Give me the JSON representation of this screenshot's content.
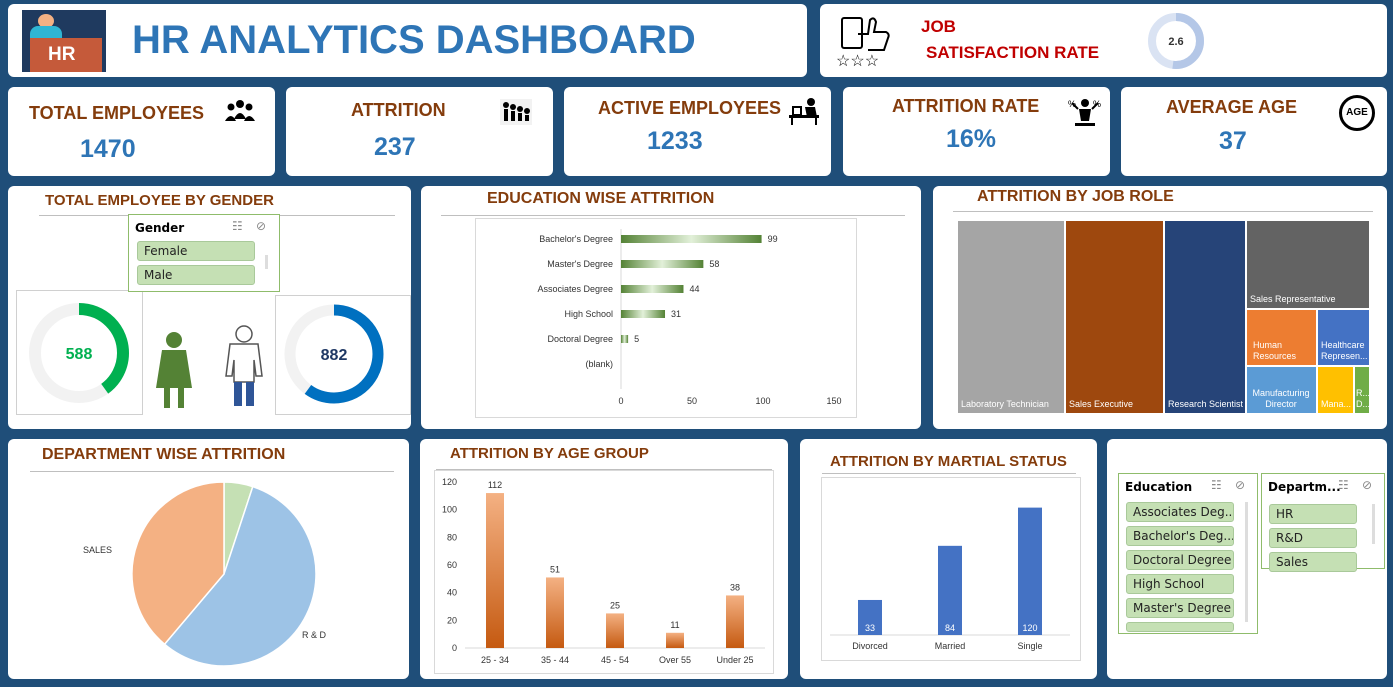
{
  "header": {
    "title": "HR ANALYTICS DASHBOARD",
    "logo_text": "HR"
  },
  "satisfaction": {
    "line1": "JOB",
    "line2": "SATISFACTION RATE",
    "value": "2.6",
    "fraction": 0.52
  },
  "kpis": [
    {
      "title": "TOTAL EMPLOYEES",
      "value": "1470",
      "icon": "people-icon"
    },
    {
      "title": "ATTRITION",
      "value": "237",
      "icon": "attrition-icon"
    },
    {
      "title": "ACTIVE EMPLOYEES",
      "value": "1233",
      "icon": "desk-worker-icon"
    },
    {
      "title": "ATTRITION RATE",
      "value": "16%",
      "icon": "rate-person-icon"
    },
    {
      "title": "AVERAGE AGE",
      "value": "37",
      "icon": "age-icon",
      "icon_text": "AGE"
    }
  ],
  "gender": {
    "title": "TOTAL EMPLOYEE BY GENDER",
    "slicer": {
      "header": "Gender",
      "items": [
        "Female",
        "Male"
      ]
    },
    "female": {
      "value": "588",
      "fraction": 0.4,
      "color": "#00b050"
    },
    "male": {
      "value": "882",
      "fraction": 0.6,
      "color": "#0070c0"
    }
  },
  "education_attrition": {
    "title": "EDUCATION WISE ATTRITION",
    "chart_data": {
      "type": "bar",
      "orientation": "horizontal",
      "categories": [
        "Bachelor's Degree",
        "Master's Degree",
        "Associates Degree",
        "High School",
        "Doctoral Degree",
        "(blank)"
      ],
      "values": [
        99,
        58,
        44,
        31,
        5,
        null
      ],
      "labels": [
        "99",
        "58",
        "44",
        "31",
        "5",
        ""
      ],
      "xlim": [
        0,
        150
      ],
      "xticks": [
        "0",
        "50",
        "100",
        "150"
      ],
      "color": "#548235"
    }
  },
  "job_role": {
    "title": "ATTRITION BY JOB ROLE",
    "chart_data": {
      "type": "treemap",
      "categories": [
        "Laboratory Technician",
        "Sales Executive",
        "Research Scientist",
        "Sales Representative",
        "Human Resources",
        "Healthcare Represen...",
        "Manufacturing Director",
        "Mana...",
        "R... D..."
      ],
      "colors": [
        "#a5a5a5",
        "#9e480e",
        "#264478",
        "#636363",
        "#ed7d31",
        "#4472c4",
        "#5b9bd5",
        "#ffc000",
        "#70ad47"
      ]
    }
  },
  "department": {
    "title": "DEPARTMENT WISE ATTRITION",
    "chart_data": {
      "type": "pie",
      "categories": [
        "SALES",
        "R & D",
        "HR"
      ],
      "labels": [
        "SALES",
        "R & D",
        ""
      ],
      "values": [
        92,
        133,
        12
      ],
      "colors": [
        "#f4b183",
        "#9dc3e6",
        "#c5e0b4"
      ]
    }
  },
  "age_group": {
    "title": "ATTRITION BY AGE GROUP",
    "chart_data": {
      "type": "bar",
      "categories": [
        "25 - 34",
        "35 - 44",
        "45 - 54",
        "Over 55",
        "Under 25"
      ],
      "values": [
        112,
        51,
        25,
        11,
        38
      ],
      "labels": [
        "112",
        "51",
        "25",
        "11",
        "38"
      ],
      "ylim": [
        0,
        120
      ],
      "yticks": [
        "0",
        "20",
        "40",
        "60",
        "80",
        "100",
        "120"
      ],
      "color": "#ed7d31"
    }
  },
  "marital": {
    "title": "ATTRITION BY  MARTIAL STATUS",
    "chart_data": {
      "type": "bar",
      "categories": [
        "Divorced",
        "Married",
        "Single"
      ],
      "values": [
        33,
        84,
        120
      ],
      "labels": [
        "33",
        "84",
        "120"
      ],
      "ylim": [
        0,
        130
      ],
      "color": "#4472c4"
    }
  },
  "slicers": {
    "education": {
      "header": "Education",
      "items": [
        "Associates Deg...",
        "Bachelor's Deg...",
        "Doctoral Degree",
        "High School",
        "Master's Degree"
      ]
    },
    "department": {
      "header": "Departm...",
      "items": [
        "HR",
        "R&D",
        "Sales"
      ]
    }
  }
}
